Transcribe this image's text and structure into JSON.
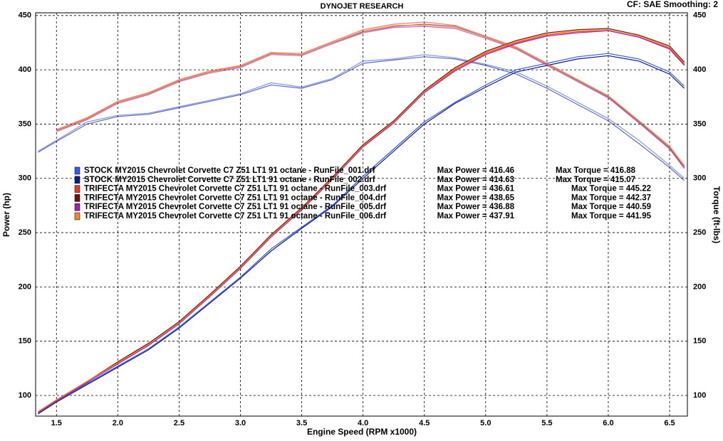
{
  "header": {
    "title": "DYNOJET RESEARCH",
    "settings": "CF: SAE  Smoothing: 2"
  },
  "chart_data": {
    "type": "line",
    "xlabel": "Engine Speed (RPM x1000)",
    "ylabel": "Power (hp)",
    "y2label": "Torque (ft-lbs)",
    "xlim": [
      1.33,
      6.645
    ],
    "ylim": [
      81,
      452.5
    ],
    "y2lim": [
      81,
      452.5
    ],
    "xticks": [
      1.5,
      {
        "value": 2,
        "label": "2.0"
      },
      2.5,
      {
        "value": 3,
        "label": "3.0"
      },
      3.5,
      {
        "value": 4,
        "label": "4.0"
      },
      4.5,
      {
        "value": 5,
        "label": "5.0"
      },
      5.5,
      {
        "value": 6,
        "label": "6.0"
      },
      6.5
    ],
    "yticks": [
      100,
      150,
      200,
      250,
      300,
      350,
      400,
      450
    ],
    "y2ticks": [
      100,
      150,
      200,
      250,
      300,
      350,
      400,
      450
    ],
    "grid": true,
    "x": [
      1.35,
      1.5,
      1.75,
      2.0,
      2.25,
      2.5,
      2.75,
      3.0,
      3.25,
      3.5,
      3.75,
      4.0,
      4.25,
      4.5,
      4.75,
      5.0,
      5.25,
      5.5,
      5.75,
      6.0,
      6.25,
      6.5,
      6.62
    ],
    "series": [
      {
        "name": "STOCK MY2015 Chevrolet Corvette C7 Z51 LT1 91 octane - RunFile_001.drf",
        "max_power": "Max Power = 416.46",
        "max_torque": "Max Torque = 416.88",
        "color": "#3a5be8",
        "power": [
          84,
          95,
          111,
          127,
          143,
          163,
          186,
          209,
          235,
          255,
          275,
          302,
          327,
          352,
          370,
          386,
          400,
          406,
          412,
          415,
          410,
          398,
          385
        ],
        "torque": [
          325,
          335,
          352,
          358,
          360,
          366,
          372,
          378,
          388,
          384,
          392,
          408,
          410,
          414,
          411,
          405,
          398,
          385,
          370,
          355,
          335,
          312,
          300
        ]
      },
      {
        "name": "STOCK MY2015 Chevrolet Corvette C7 Z51 LT1 91 octane - RunFile_002.drf",
        "max_power": "Max Power = 414.63",
        "max_torque": "Max Torque = 415.07",
        "color": "#101c8c",
        "power": [
          83,
          94,
          110,
          126,
          142,
          162,
          185,
          208,
          233,
          254,
          274,
          300,
          325,
          350,
          369,
          384,
          398,
          404,
          410,
          413,
          408,
          396,
          383
        ],
        "torque": [
          324,
          334,
          350,
          357,
          359,
          365,
          371,
          377,
          386,
          383,
          391,
          406,
          409,
          412,
          410,
          404,
          396,
          383,
          368,
          353,
          332,
          310,
          298
        ]
      },
      {
        "name": "TRIFECTA MY2015 Chevrolet Corvette C7 Z51 LT1 91 octane - RunFile_003.drf",
        "max_power": "Max Power = 436.61",
        "max_torque": "Max Torque = 445.22",
        "color": "#e83a24",
        "power": [
          85,
          96,
          113,
          130,
          147,
          167,
          192,
          218,
          247,
          272,
          300,
          330,
          352,
          380,
          400,
          415,
          425,
          432,
          435,
          436,
          430,
          420,
          405
        ],
        "torque": [
          null,
          345,
          356,
          371,
          379,
          391,
          399,
          404,
          416,
          415,
          426,
          437,
          442,
          444,
          441,
          431,
          421,
          406,
          391,
          376,
          353,
          329,
          311
        ]
      },
      {
        "name": "TRIFECTA MY2015 Chevrolet Corvette C7 Z51 LT1 91 octane - RunFile_004.drf",
        "max_power": "Max Power = 438.65",
        "max_torque": "Max Torque = 442.37",
        "color": "#7a0c0c",
        "power": [
          85,
          96,
          113,
          131,
          148,
          168,
          193,
          219,
          248,
          273,
          301,
          331,
          353,
          381,
          402,
          417,
          427,
          434,
          437,
          438,
          432,
          422,
          407
        ],
        "torque": [
          null,
          344,
          355,
          370,
          378,
          390,
          398,
          403,
          415,
          414,
          425,
          435,
          440,
          442,
          440,
          430,
          420,
          405,
          390,
          375,
          352,
          328,
          310
        ]
      },
      {
        "name": "TRIFECTA MY2015 Chevrolet Corvette C7 Z51 LT1 91 octane - RunFile_005.drf",
        "max_power": "Max Power = 436.88",
        "max_torque": "Max Torque = 440.59",
        "color": "#a81ca8",
        "power": [
          84,
          95,
          112,
          129,
          146,
          166,
          191,
          217,
          246,
          271,
          299,
          329,
          351,
          379,
          399,
          414,
          424,
          431,
          434,
          436,
          430,
          419,
          404
        ],
        "torque": [
          null,
          343,
          354,
          369,
          377,
          389,
          397,
          402,
          414,
          413,
          424,
          434,
          439,
          440,
          438,
          429,
          419,
          404,
          389,
          374,
          351,
          327,
          309
        ]
      },
      {
        "name": "TRIFECTA MY2015 Chevrolet Corvette C7 Z51 LT1 91 octane - RunFile_006.drf",
        "max_power": "Max Power = 437.91",
        "max_torque": "Max Torque = 441.95",
        "color": "#f0882a",
        "power": [
          85,
          96,
          113,
          130,
          147,
          167,
          192,
          218,
          247,
          272,
          300,
          330,
          352,
          380,
          401,
          416,
          426,
          433,
          436,
          437,
          431,
          421,
          406
        ],
        "torque": [
          null,
          344,
          355,
          370,
          378,
          390,
          398,
          403,
          415,
          414,
          425,
          436,
          441,
          441,
          439,
          430,
          420,
          405,
          391,
          376,
          353,
          330,
          312
        ]
      }
    ]
  }
}
